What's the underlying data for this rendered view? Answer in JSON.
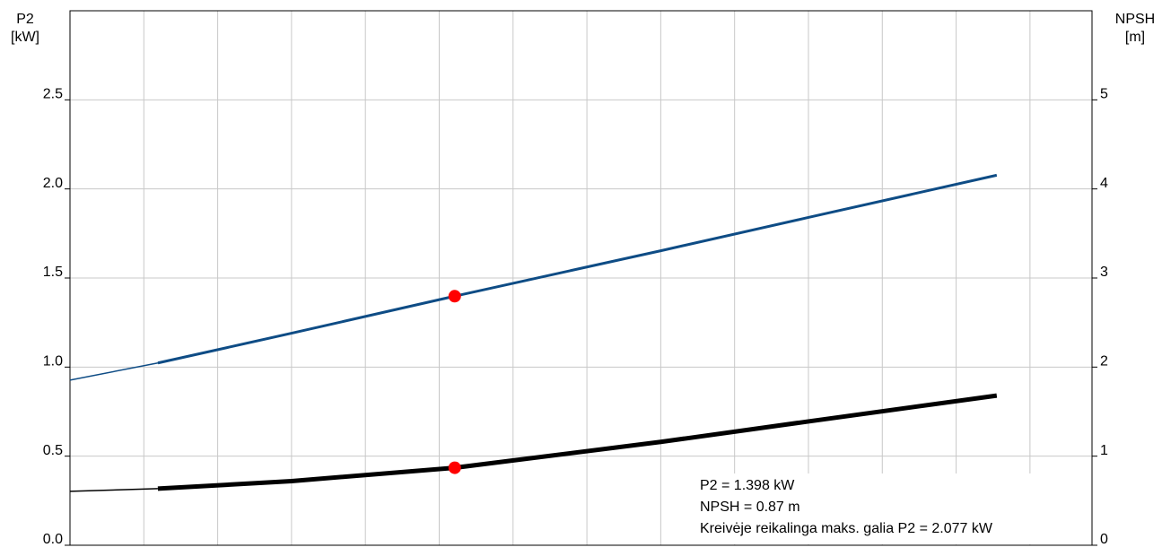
{
  "chart_data": {
    "type": "line",
    "ylabel": "P2",
    "yunit": "[kW]",
    "y2label": "NPSH",
    "y2unit": "[m]",
    "xlim": [
      0,
      13.84
    ],
    "xticks": [
      0,
      1,
      2,
      3,
      4,
      5,
      6,
      7,
      8,
      9,
      10,
      11,
      12,
      13
    ],
    "ylim": [
      0,
      3
    ],
    "yticks": [
      {
        "value": 0,
        "label": "0.0"
      },
      {
        "value": 0.5,
        "label": "0.5"
      },
      {
        "value": 1,
        "label": "1.0"
      },
      {
        "value": 1.5,
        "label": "1.5"
      },
      {
        "value": 2,
        "label": "2.0"
      },
      {
        "value": 2.5,
        "label": "2.5"
      }
    ],
    "y2lim": [
      0,
      6
    ],
    "y2ticks": [
      0,
      1,
      2,
      3,
      4,
      5
    ],
    "grid": true,
    "series": [
      {
        "color": "#0e4c85",
        "width": 1.5,
        "x": [
          0,
          1.19
        ],
        "values": [
          0.927,
          1.023
        ]
      },
      {
        "color": "#0e4c85",
        "width": 3,
        "x": [
          1.19,
          3,
          5.21,
          8,
          10,
          12.55
        ],
        "values": [
          1.023,
          1.19,
          1.398,
          1.653,
          1.84,
          2.077
        ]
      },
      {
        "color": "#000000",
        "width": 1.5,
        "axis": "y2",
        "x": [
          0,
          1.19
        ],
        "values": [
          0.605,
          0.635
        ]
      },
      {
        "color": "#000000",
        "width": 5,
        "axis": "y2",
        "x": [
          1.19,
          3,
          5.21,
          8,
          10,
          12.55
        ],
        "values": [
          0.635,
          0.72,
          0.87,
          1.16,
          1.39,
          1.68
        ]
      }
    ],
    "points": {
      "color": "#ff0000",
      "x": [
        5.21,
        5.21
      ],
      "values": [
        1.398,
        0.87
      ],
      "axes": [
        "y",
        "y2"
      ]
    },
    "annotations": [
      "P2 = 1.398 kW",
      "NPSH = 0.87 m",
      "Kreivėje reikalinga maks. galia P2 = 2.077 kW"
    ]
  }
}
